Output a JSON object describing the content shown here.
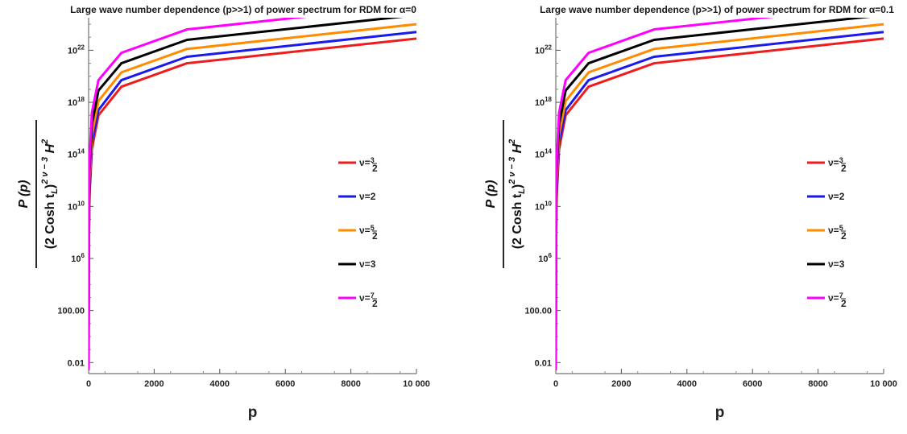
{
  "chart_data": [
    {
      "type": "line",
      "title": "Large wave number dependence (p>>1) of power spectrum for RDM for α=0",
      "xlabel": "p",
      "ylabel": {
        "numerator": "P (p)",
        "denominator_base": "(2 Cosh t",
        "denominator_sub": "L",
        "denominator_close": ")",
        "denominator_exp": "2 ν − 3",
        "denominator_tail": " H",
        "denominator_tail_exp": "2"
      },
      "xlim": [
        0,
        10000
      ],
      "ylim_log10": [
        -2.6,
        24.5
      ],
      "y_scale": "log",
      "xticks": [
        0,
        2000,
        4000,
        6000,
        8000,
        10000
      ],
      "xtick_labels": [
        "0",
        "2000",
        "4000",
        "6000",
        "8000",
        "10 000"
      ],
      "yticks_log10": [
        -2,
        2,
        6,
        10,
        14,
        18,
        22
      ],
      "ytick_labels": [
        {
          "base": "0.01",
          "exp": ""
        },
        {
          "base": "100.00",
          "exp": ""
        },
        {
          "base": "10",
          "exp": "6"
        },
        {
          "base": "10",
          "exp": "10"
        },
        {
          "base": "10",
          "exp": "14"
        },
        {
          "base": "10",
          "exp": "18"
        },
        {
          "base": "10",
          "exp": "22"
        }
      ],
      "legend_position": "right-middle",
      "series": [
        {
          "name": "ν=3/2",
          "nu": "3",
          "frac": true,
          "den": "2",
          "color": "#ee1c1c",
          "x": [
            1,
            10,
            30,
            100,
            300,
            1000,
            3000,
            10000
          ],
          "y_log10": [
            -1.7,
            7.3,
            10.9,
            14.4,
            17.0,
            19.2,
            21.0,
            22.9
          ]
        },
        {
          "name": "ν=2",
          "nu": "2",
          "frac": false,
          "den": "",
          "color": "#1a1aee",
          "x": [
            1,
            10,
            30,
            100,
            300,
            1000,
            3000,
            10000
          ],
          "y_log10": [
            -1.2,
            7.9,
            11.4,
            14.9,
            17.4,
            19.7,
            21.5,
            23.4
          ]
        },
        {
          "name": "ν=5/2",
          "nu": "5",
          "frac": true,
          "den": "2",
          "color": "#ff8c00",
          "x": [
            1,
            10,
            30,
            100,
            300,
            1000,
            3000,
            10000
          ],
          "y_log10": [
            -0.4,
            8.6,
            12.0,
            15.5,
            18.1,
            20.3,
            22.1,
            24.0
          ]
        },
        {
          "name": "ν=3",
          "nu": "3",
          "frac": false,
          "den": "",
          "color": "#000000",
          "x": [
            1,
            10,
            30,
            100,
            300,
            1000,
            3000,
            10000
          ],
          "y_log10": [
            0.5,
            9.4,
            12.8,
            16.3,
            18.9,
            21.0,
            22.8,
            24.7
          ]
        },
        {
          "name": "ν=7/2",
          "nu": "7",
          "frac": true,
          "den": "2",
          "color": "#ff00ff",
          "x": [
            1,
            10,
            30,
            100,
            300,
            1000,
            3000,
            10000
          ],
          "y_log10": [
            1.4,
            10.3,
            13.7,
            17.2,
            19.7,
            21.8,
            23.6,
            25.5
          ]
        }
      ]
    },
    {
      "type": "line",
      "title": "Large wave number dependence (p>>1) of power spectrum for RDM for α=0.1",
      "xlabel": "p",
      "ylabel": {
        "numerator": "P (p)",
        "denominator_base": "(2 Cosh t",
        "denominator_sub": "L",
        "denominator_close": ")",
        "denominator_exp": "2 ν − 3",
        "denominator_tail": " H",
        "denominator_tail_exp": "2"
      },
      "xlim": [
        0,
        10000
      ],
      "ylim_log10": [
        -2.6,
        24.5
      ],
      "y_scale": "log",
      "xticks": [
        0,
        2000,
        4000,
        6000,
        8000,
        10000
      ],
      "xtick_labels": [
        "0",
        "2000",
        "4000",
        "6000",
        "8000",
        "10 000"
      ],
      "yticks_log10": [
        -2,
        2,
        6,
        10,
        14,
        18,
        22
      ],
      "ytick_labels": [
        {
          "base": "0.01",
          "exp": ""
        },
        {
          "base": "100.00",
          "exp": ""
        },
        {
          "base": "10",
          "exp": "6"
        },
        {
          "base": "10",
          "exp": "10"
        },
        {
          "base": "10",
          "exp": "14"
        },
        {
          "base": "10",
          "exp": "18"
        },
        {
          "base": "10",
          "exp": "22"
        }
      ],
      "legend_position": "right-middle",
      "series": [
        {
          "name": "ν=3/2",
          "nu": "3",
          "frac": true,
          "den": "2",
          "color": "#ee1c1c",
          "x": [
            1,
            10,
            30,
            100,
            300,
            1000,
            3000,
            10000
          ],
          "y_log10": [
            -1.7,
            7.3,
            10.9,
            14.4,
            17.0,
            19.2,
            21.0,
            22.9
          ]
        },
        {
          "name": "ν=2",
          "nu": "2",
          "frac": false,
          "den": "",
          "color": "#1a1aee",
          "x": [
            1,
            10,
            30,
            100,
            300,
            1000,
            3000,
            10000
          ],
          "y_log10": [
            -1.2,
            7.9,
            11.4,
            14.9,
            17.4,
            19.7,
            21.5,
            23.4
          ]
        },
        {
          "name": "ν=5/2",
          "nu": "5",
          "frac": true,
          "den": "2",
          "color": "#ff8c00",
          "x": [
            1,
            10,
            30,
            100,
            300,
            1000,
            3000,
            10000
          ],
          "y_log10": [
            -0.4,
            8.6,
            12.0,
            15.5,
            18.1,
            20.3,
            22.1,
            24.0
          ]
        },
        {
          "name": "ν=3",
          "nu": "3",
          "frac": false,
          "den": "",
          "color": "#000000",
          "x": [
            1,
            10,
            30,
            100,
            300,
            1000,
            3000,
            10000
          ],
          "y_log10": [
            0.5,
            9.4,
            12.8,
            16.3,
            18.9,
            21.0,
            22.8,
            24.7
          ]
        },
        {
          "name": "ν=7/2",
          "nu": "7",
          "frac": true,
          "den": "2",
          "color": "#ff00ff",
          "x": [
            1,
            10,
            30,
            100,
            300,
            1000,
            3000,
            10000
          ],
          "y_log10": [
            1.4,
            10.3,
            13.7,
            17.2,
            19.7,
            21.8,
            23.6,
            25.5
          ]
        }
      ]
    }
  ]
}
